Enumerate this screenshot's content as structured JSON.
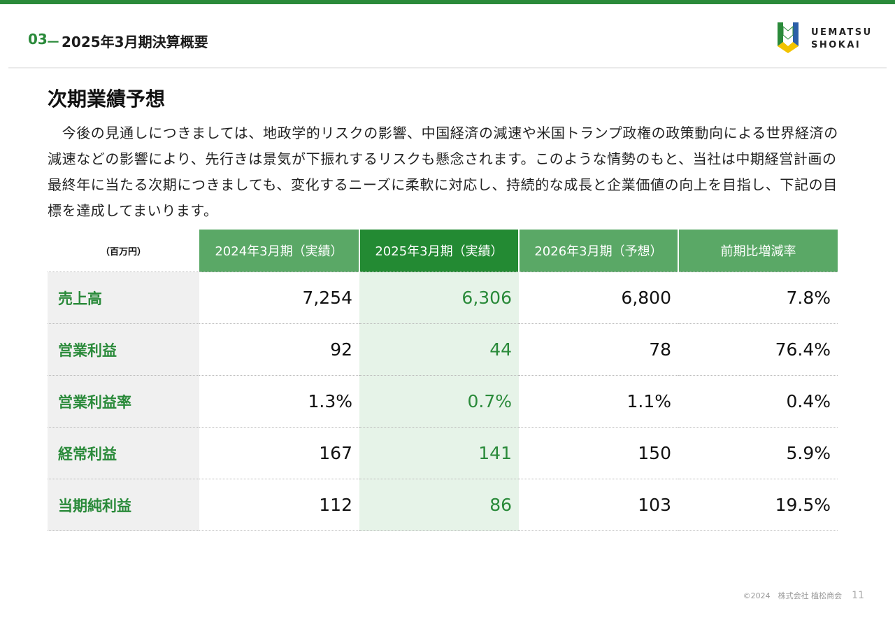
{
  "header": {
    "section_number": "03",
    "dash": "－",
    "title": "2025年3月期決算概要",
    "logo_line1": "UEMATSU",
    "logo_line2": "SHOKAI"
  },
  "section_title": "次期業績予想",
  "paragraph": "　今後の見通しにつきましては、地政学的リスクの影響、中国経済の減速や米国トランプ政権の政策動向による世界経済の減速などの影響により、先行きは景気が下振れするリスクも懸念されます。このような情勢のもと、当社は中期経営計画の最終年に当たる次期につきましても、変化するニーズに柔軟に対応し、持続的な成長と企業価値の向上を目指し、下記の目標を達成してまいります。",
  "table": {
    "unit": "（百万円）",
    "headers": [
      "2024年3月期（実績）",
      "2025年3月期（実績）",
      "2026年3月期（予想）",
      "前期比増減率"
    ],
    "rows": [
      {
        "label": "売上高",
        "values": [
          "7,254",
          "6,306",
          "6,800",
          "7.8%"
        ]
      },
      {
        "label": "営業利益",
        "values": [
          "92",
          "44",
          "78",
          "76.4%"
        ]
      },
      {
        "label": "営業利益率",
        "values": [
          "1.3%",
          "0.7%",
          "1.1%",
          "0.4%"
        ]
      },
      {
        "label": "経常利益",
        "values": [
          "167",
          "141",
          "150",
          "5.9%"
        ]
      },
      {
        "label": "当期純利益",
        "values": [
          "112",
          "86",
          "103",
          "19.5%"
        ]
      }
    ]
  },
  "footer": {
    "copyright": "©2024　株式会社 植松商会",
    "page": "11"
  },
  "colors": {
    "accent": "#2a8a3a",
    "header_cell": "#5aa866",
    "current_header": "#238a33",
    "current_column_bg": "#e6f3e8",
    "label_bg": "#f0f0f0"
  }
}
